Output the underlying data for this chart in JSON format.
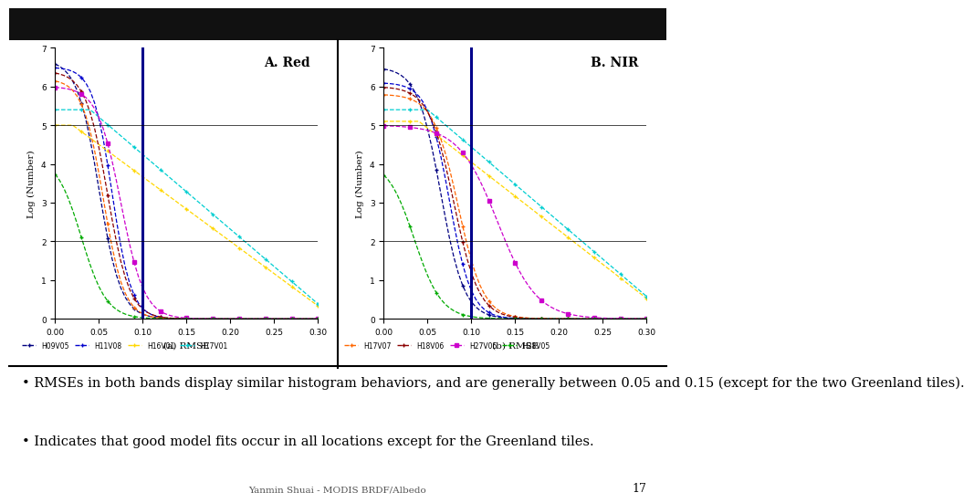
{
  "title_left": "A. Red",
  "title_right": "B. NIR",
  "xlabel_left": "(a) RMSE",
  "xlabel_right": "(b) RMSE",
  "ylabel": "Log (Number)",
  "xlim": [
    0.0,
    0.3
  ],
  "ylim": [
    0,
    7
  ],
  "vline_x": 0.1,
  "yticks": [
    0,
    1,
    2,
    3,
    4,
    5,
    6,
    7
  ],
  "xticks": [
    0.0,
    0.05,
    0.1,
    0.15,
    0.2,
    0.25,
    0.3
  ],
  "colors": {
    "H09V05": "#000080",
    "H11V08": "#0000CD",
    "H16V01": "#FFD700",
    "H17V01": "#00CED1",
    "H17V07": "#FF6600",
    "H18V06": "#8B0000",
    "H27V05": "#CC00CC",
    "H28V05": "#00AA00"
  },
  "markers": {
    "H09V05": "+",
    "H11V08": "+",
    "H16V01": "+",
    "H17V01": "+",
    "H17V07": "+",
    "H18V06": "+",
    "H27V05": "s",
    "H28V05": "+"
  },
  "footer": "Yanmin Shuai - MODIS BRDF/Albedo",
  "page_num": "17",
  "bullet_text_1": "• RMSEs in both bands display similar histogram behaviors, and are generally between 0.05 and 0.15 (except for the two Greenland tiles).",
  "bullet_text_2": "• Indicates that good model fits occur in all locations except for the Greenland tiles.",
  "background_color": "#FFFFFF",
  "top_bar_color": "#111111"
}
